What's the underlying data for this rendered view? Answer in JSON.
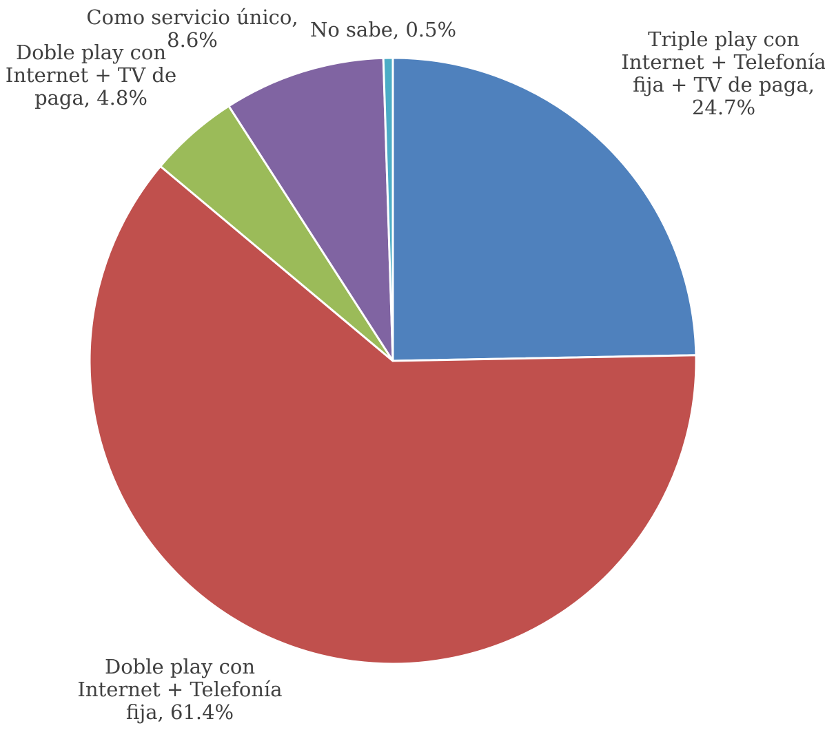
{
  "chart_data": {
    "type": "pie",
    "title": "",
    "start_angle_deg": 0,
    "direction": "clockwise",
    "slices": [
      {
        "label": "Triple play con Internet + Telefonía fija + TV de paga",
        "value": 24.7,
        "label_text": "24.7%",
        "label_lines": [
          "Triple play con",
          "Internet + Telefonía",
          "fija + TV de paga,",
          "24.7%"
        ],
        "color": "#4F81BD"
      },
      {
        "label": "Doble play con Internet + Telefonía fija",
        "value": 61.4,
        "label_text": "61.4%",
        "label_lines": [
          "Doble play con",
          "Internet + Telefonía",
          "fija, 61.4%"
        ],
        "color": "#C0504D"
      },
      {
        "label": "Doble play con Internet + TV de paga",
        "value": 4.8,
        "label_text": "4.8%",
        "label_lines": [
          "Doble play con",
          "Internet + TV de",
          "paga, 4.8%"
        ],
        "color": "#9BBB59"
      },
      {
        "label": "Como servicio único",
        "value": 8.6,
        "label_text": "8.6%",
        "label_lines": [
          "Como servicio único,",
          "8.6%"
        ],
        "color": "#8064A2"
      },
      {
        "label": "No sabe",
        "value": 0.5,
        "label_text": "0.5%",
        "label_lines": [
          "No sabe, 0.5%"
        ],
        "color": "#4BACC6"
      }
    ]
  }
}
